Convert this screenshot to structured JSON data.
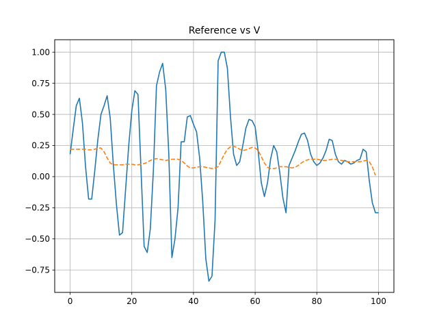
{
  "chart_data": {
    "type": "line",
    "title": "Reference vs V",
    "xlabel": "",
    "ylabel": "",
    "xlim": [
      -5,
      105
    ],
    "ylim": [
      -0.93,
      1.1
    ],
    "xticks": [
      0,
      20,
      40,
      60,
      80,
      100
    ],
    "xtick_labels": [
      "0",
      "20",
      "40",
      "60",
      "80",
      "100"
    ],
    "yticks": [
      -0.75,
      -0.5,
      -0.25,
      0.0,
      0.25,
      0.5,
      0.75,
      1.0
    ],
    "ytick_labels": [
      "−0.75",
      "−0.50",
      "−0.25",
      "0.00",
      "0.25",
      "0.50",
      "0.75",
      "1.00"
    ],
    "grid": true,
    "series": [
      {
        "color": "#1f77b4",
        "style": "solid",
        "x": [
          0,
          1,
          2,
          3,
          4,
          5,
          6,
          7,
          8,
          9,
          10,
          11,
          12,
          13,
          14,
          15,
          16,
          17,
          18,
          19,
          20,
          21,
          22,
          23,
          24,
          25,
          26,
          27,
          28,
          29,
          30,
          31,
          32,
          33,
          34,
          35,
          36,
          37,
          38,
          39,
          40,
          41,
          42,
          43,
          44,
          45,
          46,
          47,
          48,
          49,
          50,
          51,
          52,
          53,
          54,
          55,
          56,
          57,
          58,
          59,
          60,
          61,
          62,
          63,
          64,
          65,
          66,
          67,
          68,
          69,
          70,
          71,
          72,
          73,
          74,
          75,
          76,
          77,
          78,
          79,
          80,
          81,
          82,
          83,
          84,
          85,
          86,
          87,
          88,
          89,
          90,
          91,
          92,
          93,
          94,
          95,
          96,
          97,
          98,
          99,
          100
        ],
        "y": [
          0.18,
          0.38,
          0.57,
          0.63,
          0.43,
          0.08,
          -0.18,
          -0.18,
          0.05,
          0.3,
          0.5,
          0.57,
          0.65,
          0.47,
          0.1,
          -0.22,
          -0.47,
          -0.45,
          -0.1,
          0.25,
          0.53,
          0.69,
          0.66,
          0.05,
          -0.56,
          -0.61,
          -0.42,
          0.05,
          0.73,
          0.84,
          0.91,
          0.7,
          0.18,
          -0.65,
          -0.5,
          -0.25,
          0.28,
          0.28,
          0.48,
          0.49,
          0.42,
          0.36,
          0.15,
          -0.2,
          -0.66,
          -0.84,
          -0.8,
          -0.35,
          0.93,
          1.0,
          1.0,
          0.87,
          0.48,
          0.18,
          0.09,
          0.12,
          0.25,
          0.39,
          0.46,
          0.45,
          0.4,
          0.2,
          -0.05,
          -0.16,
          -0.05,
          0.14,
          0.25,
          0.2,
          0.03,
          -0.17,
          -0.29,
          0.09,
          0.15,
          0.21,
          0.28,
          0.34,
          0.35,
          0.29,
          0.18,
          0.12,
          0.09,
          0.11,
          0.15,
          0.21,
          0.3,
          0.29,
          0.18,
          0.12,
          0.1,
          0.13,
          0.12,
          0.1,
          0.11,
          0.13,
          0.14,
          0.22,
          0.2,
          -0.03,
          -0.21,
          -0.29,
          -0.29
        ]
      },
      {
        "color": "#ff7f0e",
        "style": "dashed",
        "x": [
          0,
          1,
          2,
          3,
          4,
          5,
          6,
          7,
          8,
          9,
          10,
          11,
          12,
          13,
          14,
          15,
          16,
          17,
          18,
          19,
          20,
          21,
          22,
          23,
          24,
          25,
          26,
          27,
          28,
          29,
          30,
          31,
          32,
          33,
          34,
          35,
          36,
          37,
          38,
          39,
          40,
          41,
          42,
          43,
          44,
          45,
          46,
          47,
          48,
          49,
          50,
          51,
          52,
          53,
          54,
          55,
          56,
          57,
          58,
          59,
          60,
          61,
          62,
          63,
          64,
          65,
          66,
          67,
          68,
          69,
          70,
          71,
          72,
          73,
          74,
          75,
          76,
          77,
          78,
          79,
          80,
          81,
          82,
          83,
          84,
          85,
          86,
          87,
          88,
          89,
          90,
          91,
          92,
          93,
          94,
          95,
          96,
          97,
          98,
          99
        ],
        "y": [
          0.22,
          0.22,
          0.22,
          0.22,
          0.22,
          0.22,
          0.215,
          0.215,
          0.22,
          0.23,
          0.23,
          0.2,
          0.15,
          0.11,
          0.095,
          0.095,
          0.095,
          0.095,
          0.1,
          0.1,
          0.1,
          0.095,
          0.095,
          0.1,
          0.105,
          0.115,
          0.13,
          0.14,
          0.145,
          0.14,
          0.135,
          0.13,
          0.135,
          0.14,
          0.14,
          0.14,
          0.13,
          0.11,
          0.085,
          0.07,
          0.07,
          0.075,
          0.08,
          0.08,
          0.075,
          0.07,
          0.065,
          0.07,
          0.08,
          0.13,
          0.18,
          0.22,
          0.24,
          0.245,
          0.235,
          0.22,
          0.21,
          0.215,
          0.225,
          0.235,
          0.23,
          0.21,
          0.16,
          0.11,
          0.075,
          0.065,
          0.065,
          0.07,
          0.08,
          0.08,
          0.08,
          0.075,
          0.07,
          0.075,
          0.09,
          0.11,
          0.125,
          0.135,
          0.14,
          0.14,
          0.14,
          0.135,
          0.13,
          0.13,
          0.135,
          0.14,
          0.14,
          0.135,
          0.13,
          0.125,
          0.12,
          0.12,
          0.12,
          0.12,
          0.12,
          0.125,
          0.13,
          0.12,
          0.08,
          0.01
        ]
      }
    ]
  }
}
